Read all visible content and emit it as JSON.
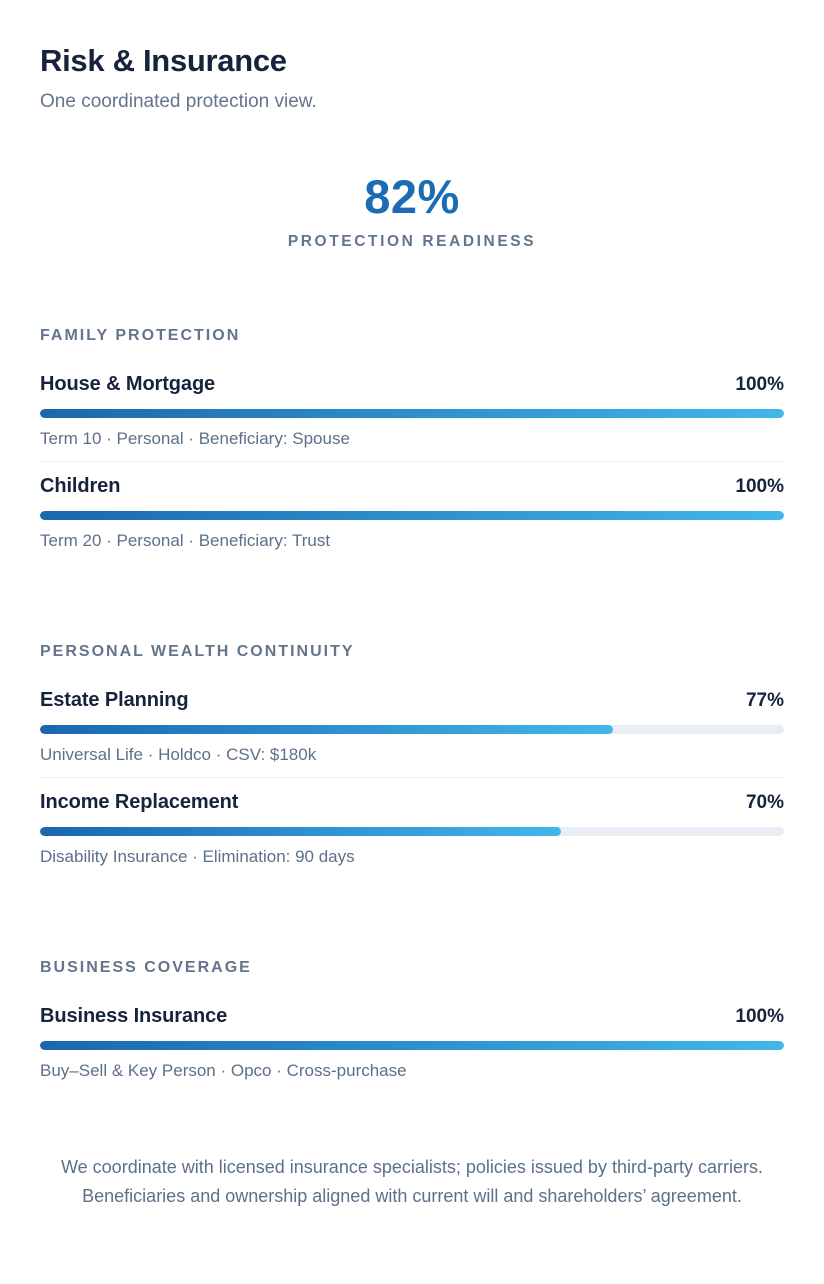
{
  "page": {
    "title": "Risk & Insurance",
    "subtitle": "One coordinated protection view."
  },
  "hero": {
    "value": "82%",
    "label": "PROTECTION READINESS"
  },
  "sections": [
    {
      "label": "FAMILY PROTECTION",
      "items": [
        {
          "name": "House & Mortgage",
          "percent": 100,
          "percent_label": "100%",
          "detail": "Term 10 · Personal · Beneficiary: Spouse"
        },
        {
          "name": "Children",
          "percent": 100,
          "percent_label": "100%",
          "detail": "Term 20 · Personal · Beneficiary: Trust"
        }
      ]
    },
    {
      "label": "PERSONAL WEALTH CONTINUITY",
      "items": [
        {
          "name": "Estate Planning",
          "percent": 77,
          "percent_label": "77%",
          "detail": "Universal Life · Holdco · CSV: $180k"
        },
        {
          "name": "Income Replacement",
          "percent": 70,
          "percent_label": "70%",
          "detail": "Disability Insurance · Elimination: 90 days"
        }
      ]
    },
    {
      "label": "BUSINESS COVERAGE",
      "items": [
        {
          "name": "Business Insurance",
          "percent": 100,
          "percent_label": "100%",
          "detail": "Buy–Sell & Key Person · Opco · Cross-purchase"
        }
      ]
    }
  ],
  "footer": {
    "lines": [
      "We coordinate with licensed insurance specialists; policies issued by third-party carriers.",
      "Beneficiaries and ownership aligned with current will and shareholders’ agreement."
    ]
  },
  "colors": {
    "accent_blue": "#1b6cb3",
    "bar_gradient_start": "#1a67ae",
    "bar_gradient_end": "#41b7ea",
    "bar_track": "#e9eef4",
    "heading_navy": "#16233d",
    "muted_slate": "#64748b",
    "detail_slate": "#5d7089",
    "divider": "#edf1f6"
  }
}
